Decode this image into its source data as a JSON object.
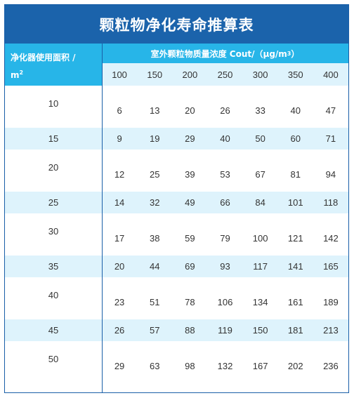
{
  "title": "颗粒物净化寿命推算表",
  "header": {
    "left_label": "净化器使用面积 /",
    "left_unit": "m",
    "left_unit_sup": "2",
    "top_label": "室外颗粒物质量浓度 Cout/（μg/m",
    "top_label_sup": "3",
    "top_label_end": "）",
    "columns": [
      "100",
      "150",
      "200",
      "250",
      "300",
      "350",
      "400"
    ]
  },
  "rows": [
    {
      "area": "10",
      "values": [
        "6",
        "13",
        "20",
        "26",
        "33",
        "40",
        "47"
      ]
    },
    {
      "area": "15",
      "values": [
        "9",
        "19",
        "29",
        "40",
        "50",
        "60",
        "71"
      ]
    },
    {
      "area": "20",
      "values": [
        "12",
        "25",
        "39",
        "53",
        "67",
        "81",
        "94"
      ]
    },
    {
      "area": "25",
      "values": [
        "14",
        "32",
        "49",
        "66",
        "84",
        "101",
        "118"
      ]
    },
    {
      "area": "30",
      "values": [
        "17",
        "38",
        "59",
        "79",
        "100",
        "121",
        "142"
      ]
    },
    {
      "area": "35",
      "values": [
        "20",
        "44",
        "69",
        "93",
        "117",
        "141",
        "165"
      ]
    },
    {
      "area": "40",
      "values": [
        "23",
        "51",
        "78",
        "106",
        "134",
        "161",
        "189"
      ]
    },
    {
      "area": "45",
      "values": [
        "26",
        "57",
        "88",
        "119",
        "150",
        "181",
        "213"
      ]
    },
    {
      "area": "50",
      "values": [
        "29",
        "63",
        "98",
        "132",
        "167",
        "202",
        "236"
      ]
    }
  ],
  "colors": {
    "title_bg": "#1b63ab",
    "header_bg": "#27b5e8",
    "stripe_bg": "#def3fc",
    "border": "#1a5fa8"
  }
}
